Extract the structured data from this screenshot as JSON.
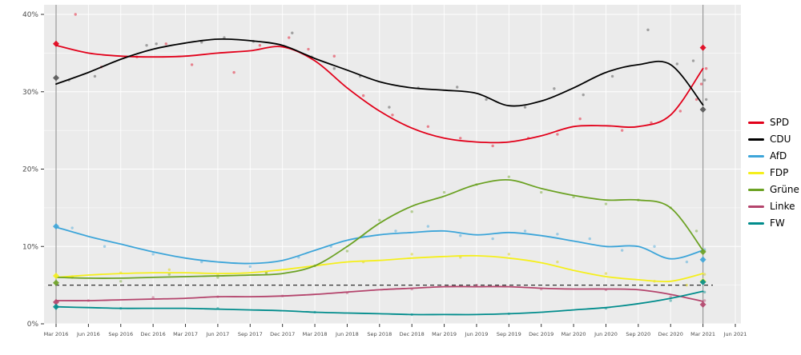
{
  "chart_data": {
    "type": "line",
    "title": "",
    "xlabel": "",
    "ylabel": "",
    "ylim": [
      0,
      41
    ],
    "grid": true,
    "legend_position": "right",
    "threshold_percent": 5,
    "y_tick_labels": [
      "0%",
      "10%",
      "20%",
      "30%",
      "40%"
    ],
    "y_tick_values": [
      0,
      10,
      20,
      30,
      40
    ],
    "y_minor_values": [
      5,
      15,
      25,
      35
    ],
    "x_labels": [
      "Mar 2016",
      "Jun 2016",
      "Sep 2016",
      "Dec 2016",
      "Mar 2017",
      "Jun 2017",
      "Sep 2017",
      "Dec 2017",
      "Mar 2018",
      "Jun 2018",
      "Sep 2018",
      "Dec 2018",
      "Mar 2019",
      "Jun 2019",
      "Sep 2019",
      "Dec 2019",
      "Mar 2020",
      "Jun 2020",
      "Sep 2020",
      "Dec 2020",
      "Mar 2021",
      "Jun 2021"
    ],
    "election_lines_x": [
      0,
      20
    ],
    "series": [
      {
        "name": "SPD",
        "color": "#e2001a",
        "point_color": "#e2001a",
        "values": [
          36,
          35,
          34.6,
          34.5,
          34.6,
          35,
          35.3,
          35.8,
          34,
          30.5,
          27.5,
          25.3,
          24,
          23.5,
          23.5,
          24.3,
          25.5,
          25.6,
          25.5,
          27,
          33
        ]
      },
      {
        "name": "CDU",
        "color": "#000000",
        "point_color": "#444444",
        "values": [
          31,
          32.5,
          34.2,
          35.5,
          36.3,
          36.8,
          36.6,
          36,
          34.3,
          32.8,
          31.3,
          30.5,
          30.2,
          29.8,
          28.2,
          28.8,
          30.5,
          32.5,
          33.5,
          33.5,
          28.3
        ]
      },
      {
        "name": "AfD",
        "color": "#3da5d9",
        "point_color": "#3da5d9",
        "values": [
          12.5,
          11.3,
          10.3,
          9.3,
          8.5,
          8,
          7.8,
          8.2,
          9.5,
          10.8,
          11.5,
          11.8,
          12,
          11.5,
          11.8,
          11.4,
          10.7,
          10,
          10,
          8.4,
          9.5
        ]
      },
      {
        "name": "FDP",
        "color": "#f5ef1c",
        "point_color": "#d8cf00",
        "values": [
          6,
          6.3,
          6.5,
          6.6,
          6.6,
          6.5,
          6.6,
          7,
          7.5,
          8,
          8.2,
          8.5,
          8.7,
          8.8,
          8.5,
          7.9,
          6.9,
          6.1,
          5.7,
          5.5,
          6.5
        ]
      },
      {
        "name": "Grüne",
        "color": "#6ca224",
        "point_color": "#6ca224",
        "values": [
          6,
          5.9,
          5.9,
          6,
          6.1,
          6.2,
          6.3,
          6.5,
          7.5,
          10,
          13,
          15.2,
          16.5,
          18,
          18.6,
          17.5,
          16.6,
          16,
          16,
          15,
          9.5
        ]
      },
      {
        "name": "Linke",
        "color": "#b4446c",
        "point_color": "#b4446c",
        "values": [
          3,
          3,
          3.1,
          3.2,
          3.3,
          3.5,
          3.5,
          3.6,
          3.8,
          4.1,
          4.4,
          4.6,
          4.8,
          4.8,
          4.8,
          4.6,
          4.5,
          4.5,
          4.4,
          3.8,
          2.9
        ]
      },
      {
        "name": "FW",
        "color": "#008c8c",
        "point_color": "#008c8c",
        "values": [
          2.2,
          2.1,
          2,
          2,
          2,
          1.9,
          1.8,
          1.7,
          1.5,
          1.4,
          1.3,
          1.2,
          1.2,
          1.2,
          1.3,
          1.5,
          1.8,
          2.1,
          2.6,
          3.3,
          4.2
        ]
      }
    ],
    "elections": [
      {
        "label": "Mar 2016",
        "x": 0,
        "results": [
          [
            "SPD",
            36.2
          ],
          [
            "CDU",
            31.8
          ],
          [
            "AfD",
            12.6
          ],
          [
            "FDP",
            6.2
          ],
          [
            "Grüne",
            5.3
          ],
          [
            "Linke",
            2.8
          ],
          [
            "FW",
            2.2
          ]
        ]
      },
      {
        "label": "Mar 2021",
        "x": 20,
        "results": [
          [
            "SPD",
            35.7
          ],
          [
            "CDU",
            27.7
          ],
          [
            "Grüne",
            9.3
          ],
          [
            "AfD",
            8.3
          ],
          [
            "FDP",
            5.5
          ],
          [
            "FW",
            5.4
          ],
          [
            "Linke",
            2.5
          ]
        ]
      }
    ],
    "poll_points": [
      [
        0,
        0.6,
        40
      ],
      [
        0,
        1.4,
        33.2
      ],
      [
        0,
        2.5,
        34.5
      ],
      [
        0,
        3.4,
        36.2
      ],
      [
        0,
        4.2,
        33.5
      ],
      [
        0,
        5.5,
        32.5
      ],
      [
        0,
        6.3,
        36
      ],
      [
        0,
        7.2,
        37
      ],
      [
        0,
        7.8,
        35.5
      ],
      [
        0,
        8.6,
        34.6
      ],
      [
        0,
        9.5,
        29.5
      ],
      [
        0,
        10.4,
        27
      ],
      [
        0,
        11.5,
        25.5
      ],
      [
        0,
        12.5,
        24
      ],
      [
        0,
        13.5,
        23
      ],
      [
        0,
        14.6,
        24
      ],
      [
        0,
        15.5,
        24.5
      ],
      [
        0,
        16.2,
        26.5
      ],
      [
        0,
        17.5,
        25
      ],
      [
        0,
        18.4,
        26
      ],
      [
        0,
        19.3,
        27.5
      ],
      [
        0,
        19.8,
        29
      ],
      [
        0,
        19.95,
        31
      ],
      [
        0,
        20.1,
        33
      ],
      [
        1,
        0.4,
        31.5
      ],
      [
        1,
        1.2,
        32
      ],
      [
        1,
        2.8,
        36
      ],
      [
        1,
        3.1,
        36.2
      ],
      [
        1,
        4.5,
        36.4
      ],
      [
        1,
        5.2,
        37
      ],
      [
        1,
        6.1,
        36.5
      ],
      [
        1,
        7.3,
        37.6
      ],
      [
        1,
        7.9,
        34.5
      ],
      [
        1,
        8.6,
        33
      ],
      [
        1,
        9.4,
        32
      ],
      [
        1,
        10.3,
        28
      ],
      [
        1,
        11.2,
        30.5
      ],
      [
        1,
        12.4,
        30.6
      ],
      [
        1,
        13.3,
        29
      ],
      [
        1,
        14.5,
        28
      ],
      [
        1,
        15.4,
        30.4
      ],
      [
        1,
        16.3,
        29.6
      ],
      [
        1,
        17.2,
        32
      ],
      [
        1,
        18.3,
        38
      ],
      [
        1,
        19.2,
        33.6
      ],
      [
        1,
        19.7,
        34
      ],
      [
        1,
        20.05,
        31.5
      ],
      [
        1,
        20.1,
        29
      ],
      [
        2,
        0.5,
        12.4
      ],
      [
        2,
        1.5,
        10
      ],
      [
        2,
        3,
        9
      ],
      [
        2,
        4.5,
        8
      ],
      [
        2,
        6,
        7.4
      ],
      [
        2,
        7.5,
        8.6
      ],
      [
        2,
        8.5,
        10
      ],
      [
        2,
        9.5,
        11.4
      ],
      [
        2,
        10.5,
        12
      ],
      [
        2,
        11.5,
        12.6
      ],
      [
        2,
        12.5,
        11.4
      ],
      [
        2,
        13.5,
        11
      ],
      [
        2,
        14.5,
        12
      ],
      [
        2,
        15.5,
        11.6
      ],
      [
        2,
        16.5,
        11
      ],
      [
        2,
        17.5,
        9.5
      ],
      [
        2,
        18.5,
        10
      ],
      [
        2,
        19.5,
        8
      ],
      [
        2,
        20.05,
        9.6
      ],
      [
        3,
        0.5,
        6.1
      ],
      [
        3,
        2,
        6.6
      ],
      [
        3,
        3.5,
        7
      ],
      [
        3,
        5,
        6.4
      ],
      [
        3,
        6.5,
        6.6
      ],
      [
        3,
        8,
        7.5
      ],
      [
        3,
        9.5,
        8
      ],
      [
        3,
        11,
        9
      ],
      [
        3,
        12.5,
        8.6
      ],
      [
        3,
        14,
        9
      ],
      [
        3,
        15.5,
        8
      ],
      [
        3,
        17,
        6.5
      ],
      [
        3,
        18.5,
        5.5
      ],
      [
        3,
        19.5,
        5
      ],
      [
        3,
        20.05,
        6.4
      ],
      [
        4,
        0.5,
        6
      ],
      [
        4,
        2,
        5.5
      ],
      [
        4,
        3.5,
        6.4
      ],
      [
        4,
        5,
        6
      ],
      [
        4,
        6.5,
        6.6
      ],
      [
        4,
        8,
        7.5
      ],
      [
        4,
        9,
        9.4
      ],
      [
        4,
        10,
        13.4
      ],
      [
        4,
        11,
        14.5
      ],
      [
        4,
        12,
        17
      ],
      [
        4,
        13,
        18
      ],
      [
        4,
        14,
        19
      ],
      [
        4,
        15,
        17
      ],
      [
        4,
        16,
        16.4
      ],
      [
        4,
        17,
        15.5
      ],
      [
        4,
        18,
        16
      ],
      [
        4,
        19,
        15
      ],
      [
        4,
        19.8,
        12
      ],
      [
        4,
        20.05,
        9.4
      ],
      [
        5,
        1,
        3
      ],
      [
        5,
        3,
        3.4
      ],
      [
        5,
        5,
        3.5
      ],
      [
        5,
        7,
        3.6
      ],
      [
        5,
        9,
        4
      ],
      [
        5,
        11,
        4.5
      ],
      [
        5,
        13,
        5
      ],
      [
        5,
        15,
        4.5
      ],
      [
        5,
        17,
        4.4
      ],
      [
        5,
        19,
        3.5
      ],
      [
        5,
        20.05,
        3
      ],
      [
        6,
        2,
        2
      ],
      [
        6,
        5,
        2
      ],
      [
        6,
        8,
        1.5
      ],
      [
        6,
        11,
        1.2
      ],
      [
        6,
        14,
        1.3
      ],
      [
        6,
        17,
        2
      ],
      [
        6,
        19,
        3
      ],
      [
        6,
        20.05,
        4.1
      ]
    ],
    "panel_bg": "#ebebeb",
    "grid_color": "#ffffff",
    "axis_text_color": "#4d4d4d",
    "election_line_color": "#999999",
    "threshold_color": "#333333"
  },
  "legend": {
    "items": [
      {
        "label": "SPD"
      },
      {
        "label": "CDU"
      },
      {
        "label": "AfD"
      },
      {
        "label": "FDP"
      },
      {
        "label": "Grüne"
      },
      {
        "label": "Linke"
      },
      {
        "label": "FW"
      }
    ]
  }
}
